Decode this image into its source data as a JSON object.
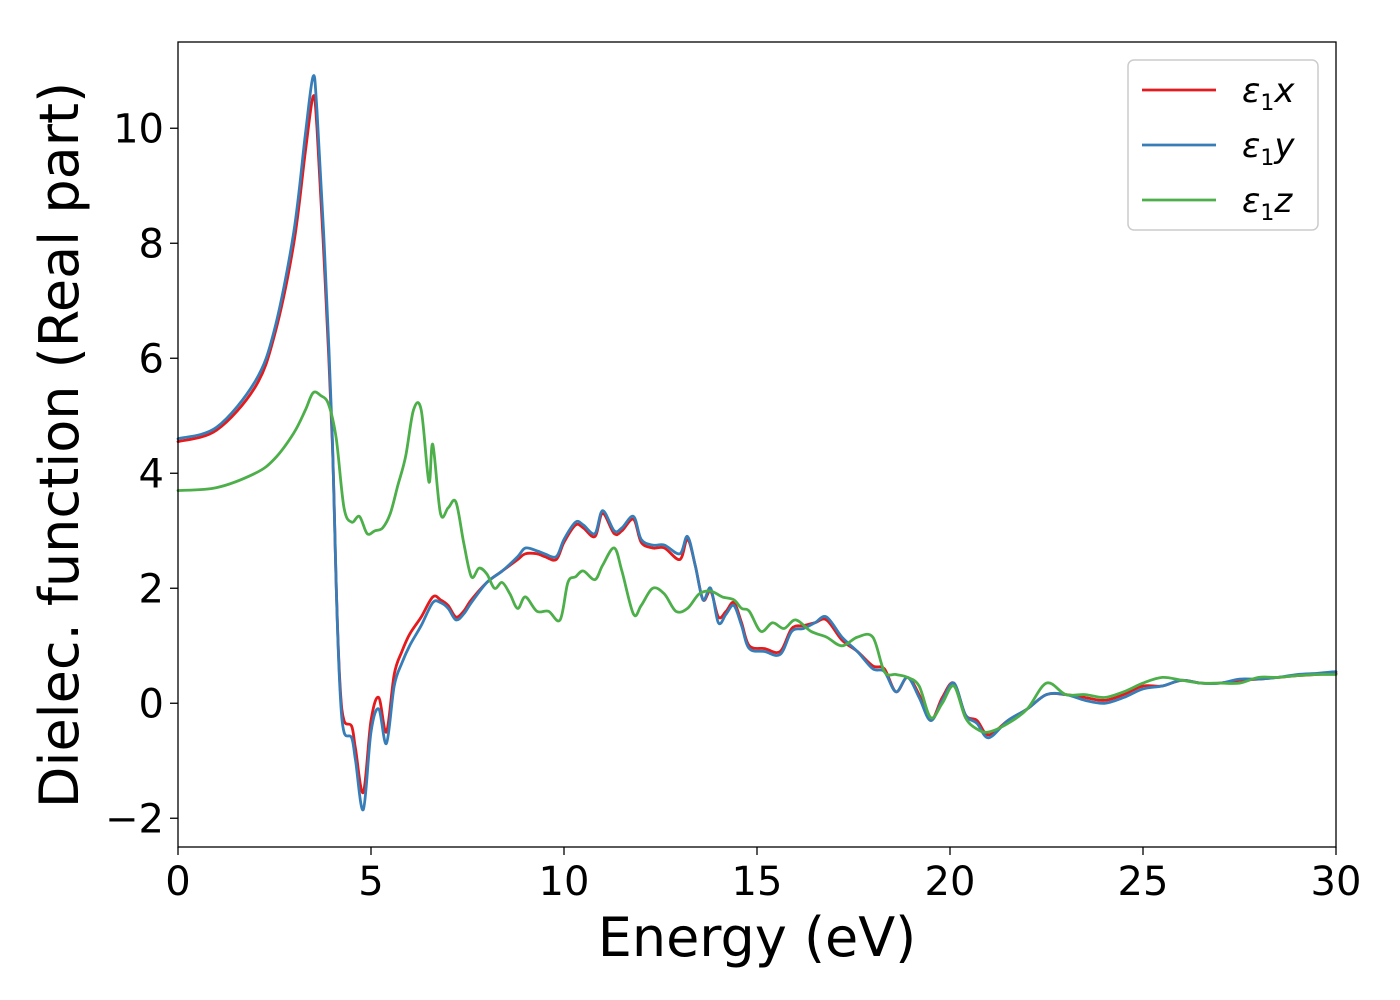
{
  "chart_data": {
    "type": "line",
    "xlabel": "Energy (eV)",
    "ylabel": "Dielec. function (Real part)",
    "xlim": [
      0,
      30
    ],
    "ylim": [
      -2.5,
      11.5
    ],
    "xticks": [
      0,
      5,
      10,
      15,
      20,
      25,
      30
    ],
    "yticks": [
      -2,
      0,
      2,
      4,
      6,
      8,
      10
    ],
    "ytick_labels": [
      "−2",
      "0",
      "2",
      "4",
      "6",
      "8",
      "10"
    ],
    "grid": false,
    "legend_position": "top-right",
    "series": [
      {
        "name": "ε1x",
        "legend_base": "ε",
        "legend_sub": "1",
        "legend_suffix": "x",
        "color": "#e41a1c",
        "x": [
          0,
          1.0,
          2.0,
          2.5,
          3.0,
          3.3,
          3.5,
          3.6,
          3.8,
          4.0,
          4.1,
          4.2,
          4.3,
          4.5,
          4.6,
          4.8,
          5.0,
          5.2,
          5.4,
          5.6,
          5.8,
          6.0,
          6.3,
          6.6,
          6.8,
          7.0,
          7.2,
          7.4,
          7.6,
          8.0,
          8.4,
          8.8,
          9.0,
          9.3,
          9.5,
          9.8,
          10.0,
          10.3,
          10.5,
          10.8,
          11.0,
          11.3,
          11.5,
          11.8,
          12.0,
          12.3,
          12.6,
          13.0,
          13.2,
          13.4,
          13.6,
          13.8,
          14.0,
          14.2,
          14.4,
          14.6,
          14.8,
          15.2,
          15.6,
          15.9,
          16.2,
          16.5,
          16.8,
          17.2,
          17.6,
          18.0,
          18.3,
          18.6,
          18.9,
          19.2,
          19.5,
          19.8,
          20.1,
          20.4,
          20.7,
          21.0,
          21.5,
          22.0,
          22.5,
          23.0,
          23.5,
          24.0,
          24.5,
          25.0,
          25.5,
          26.0,
          26.5,
          27.0,
          27.5,
          28.0,
          28.5,
          29.0,
          29.5,
          30.0
        ],
        "y": [
          4.55,
          4.75,
          5.5,
          6.4,
          8.0,
          9.6,
          10.55,
          10.0,
          7.5,
          4.5,
          2.0,
          0.3,
          -0.3,
          -0.4,
          -0.8,
          -1.55,
          -0.3,
          0.1,
          -0.5,
          0.5,
          0.9,
          1.2,
          1.5,
          1.85,
          1.8,
          1.7,
          1.5,
          1.6,
          1.8,
          2.1,
          2.3,
          2.5,
          2.6,
          2.6,
          2.55,
          2.5,
          2.8,
          3.1,
          3.05,
          2.9,
          3.3,
          2.95,
          3.0,
          3.2,
          2.8,
          2.7,
          2.7,
          2.5,
          2.85,
          2.4,
          1.8,
          1.95,
          1.5,
          1.6,
          1.75,
          1.4,
          1.0,
          0.95,
          0.9,
          1.3,
          1.35,
          1.4,
          1.45,
          1.1,
          0.9,
          0.65,
          0.6,
          0.2,
          0.45,
          0.15,
          -0.3,
          0.1,
          0.35,
          -0.2,
          -0.3,
          -0.55,
          -0.3,
          -0.1,
          0.15,
          0.15,
          0.1,
          0.05,
          0.15,
          0.3,
          0.3,
          0.4,
          0.35,
          0.35,
          0.4,
          0.42,
          0.45,
          0.48,
          0.5,
          0.52
        ]
      },
      {
        "name": "ε1y",
        "legend_base": "ε",
        "legend_sub": "1",
        "legend_suffix": "y",
        "color": "#377eb8",
        "x": [
          0,
          1.0,
          2.0,
          2.5,
          3.0,
          3.3,
          3.5,
          3.6,
          3.8,
          4.0,
          4.1,
          4.2,
          4.3,
          4.5,
          4.6,
          4.8,
          5.0,
          5.2,
          5.4,
          5.6,
          5.8,
          6.0,
          6.3,
          6.6,
          6.8,
          7.0,
          7.2,
          7.4,
          7.6,
          8.0,
          8.4,
          8.8,
          9.0,
          9.3,
          9.5,
          9.8,
          10.0,
          10.3,
          10.5,
          10.8,
          11.0,
          11.3,
          11.5,
          11.8,
          12.0,
          12.3,
          12.6,
          13.0,
          13.2,
          13.4,
          13.6,
          13.8,
          14.0,
          14.2,
          14.4,
          14.6,
          14.8,
          15.2,
          15.6,
          15.9,
          16.2,
          16.5,
          16.8,
          17.2,
          17.6,
          18.0,
          18.3,
          18.6,
          18.9,
          19.2,
          19.5,
          19.8,
          20.1,
          20.4,
          20.7,
          21.0,
          21.5,
          22.0,
          22.5,
          23.0,
          23.5,
          24.0,
          24.5,
          25.0,
          25.5,
          26.0,
          26.5,
          27.0,
          27.5,
          28.0,
          28.5,
          29.0,
          29.5,
          30.0
        ],
        "y": [
          4.6,
          4.8,
          5.6,
          6.5,
          8.2,
          9.9,
          10.9,
          10.3,
          7.8,
          4.6,
          2.0,
          0.2,
          -0.5,
          -0.6,
          -1.0,
          -1.85,
          -0.5,
          -0.1,
          -0.7,
          0.3,
          0.7,
          1.0,
          1.35,
          1.75,
          1.75,
          1.65,
          1.45,
          1.55,
          1.75,
          2.1,
          2.3,
          2.55,
          2.7,
          2.65,
          2.6,
          2.55,
          2.85,
          3.15,
          3.1,
          2.95,
          3.35,
          3.0,
          3.05,
          3.25,
          2.85,
          2.75,
          2.75,
          2.6,
          2.9,
          2.4,
          1.8,
          2.0,
          1.4,
          1.55,
          1.7,
          1.35,
          0.95,
          0.9,
          0.85,
          1.25,
          1.3,
          1.4,
          1.5,
          1.15,
          0.9,
          0.6,
          0.55,
          0.2,
          0.45,
          0.1,
          -0.3,
          0.05,
          0.35,
          -0.2,
          -0.35,
          -0.6,
          -0.3,
          -0.1,
          0.15,
          0.15,
          0.05,
          0.0,
          0.1,
          0.25,
          0.3,
          0.4,
          0.35,
          0.35,
          0.42,
          0.42,
          0.45,
          0.5,
          0.52,
          0.55
        ]
      },
      {
        "name": "ε1z",
        "legend_base": "ε",
        "legend_sub": "1",
        "legend_suffix": "z",
        "color": "#4daf4a",
        "x": [
          0,
          1.0,
          2.0,
          2.5,
          3.0,
          3.3,
          3.5,
          3.7,
          3.9,
          4.1,
          4.3,
          4.5,
          4.7,
          4.9,
          5.1,
          5.3,
          5.5,
          5.7,
          5.9,
          6.1,
          6.3,
          6.5,
          6.6,
          6.8,
          7.0,
          7.2,
          7.4,
          7.6,
          7.8,
          8.0,
          8.2,
          8.4,
          8.6,
          8.8,
          9.0,
          9.3,
          9.6,
          9.9,
          10.1,
          10.3,
          10.5,
          10.8,
          11.0,
          11.3,
          11.5,
          11.8,
          12.0,
          12.3,
          12.6,
          12.9,
          13.2,
          13.5,
          13.8,
          14.1,
          14.4,
          14.6,
          14.8,
          15.1,
          15.4,
          15.7,
          16.0,
          16.4,
          16.8,
          17.2,
          17.6,
          18.0,
          18.3,
          18.6,
          18.9,
          19.2,
          19.5,
          19.8,
          20.1,
          20.4,
          20.7,
          21.0,
          21.5,
          22.0,
          22.5,
          23.0,
          23.5,
          24.0,
          24.5,
          25.0,
          25.5,
          26.0,
          26.5,
          27.0,
          27.5,
          28.0,
          28.5,
          29.0,
          29.5,
          30.0
        ],
        "y": [
          3.7,
          3.75,
          4.0,
          4.25,
          4.7,
          5.1,
          5.4,
          5.35,
          5.2,
          4.6,
          3.4,
          3.15,
          3.25,
          2.95,
          3.0,
          3.05,
          3.3,
          3.8,
          4.3,
          5.1,
          5.1,
          3.85,
          4.5,
          3.3,
          3.4,
          3.5,
          2.8,
          2.2,
          2.35,
          2.25,
          2.0,
          2.1,
          1.9,
          1.65,
          1.85,
          1.6,
          1.6,
          1.45,
          2.1,
          2.2,
          2.3,
          2.15,
          2.4,
          2.7,
          2.3,
          1.55,
          1.7,
          2.0,
          1.9,
          1.6,
          1.65,
          1.9,
          1.95,
          1.85,
          1.8,
          1.65,
          1.6,
          1.25,
          1.4,
          1.3,
          1.45,
          1.25,
          1.15,
          1.0,
          1.15,
          1.15,
          0.55,
          0.5,
          0.45,
          0.3,
          -0.25,
          0.0,
          0.3,
          -0.25,
          -0.45,
          -0.5,
          -0.35,
          -0.1,
          0.35,
          0.15,
          0.15,
          0.1,
          0.2,
          0.35,
          0.45,
          0.4,
          0.35,
          0.35,
          0.35,
          0.45,
          0.45,
          0.48,
          0.5,
          0.5
        ]
      }
    ]
  }
}
